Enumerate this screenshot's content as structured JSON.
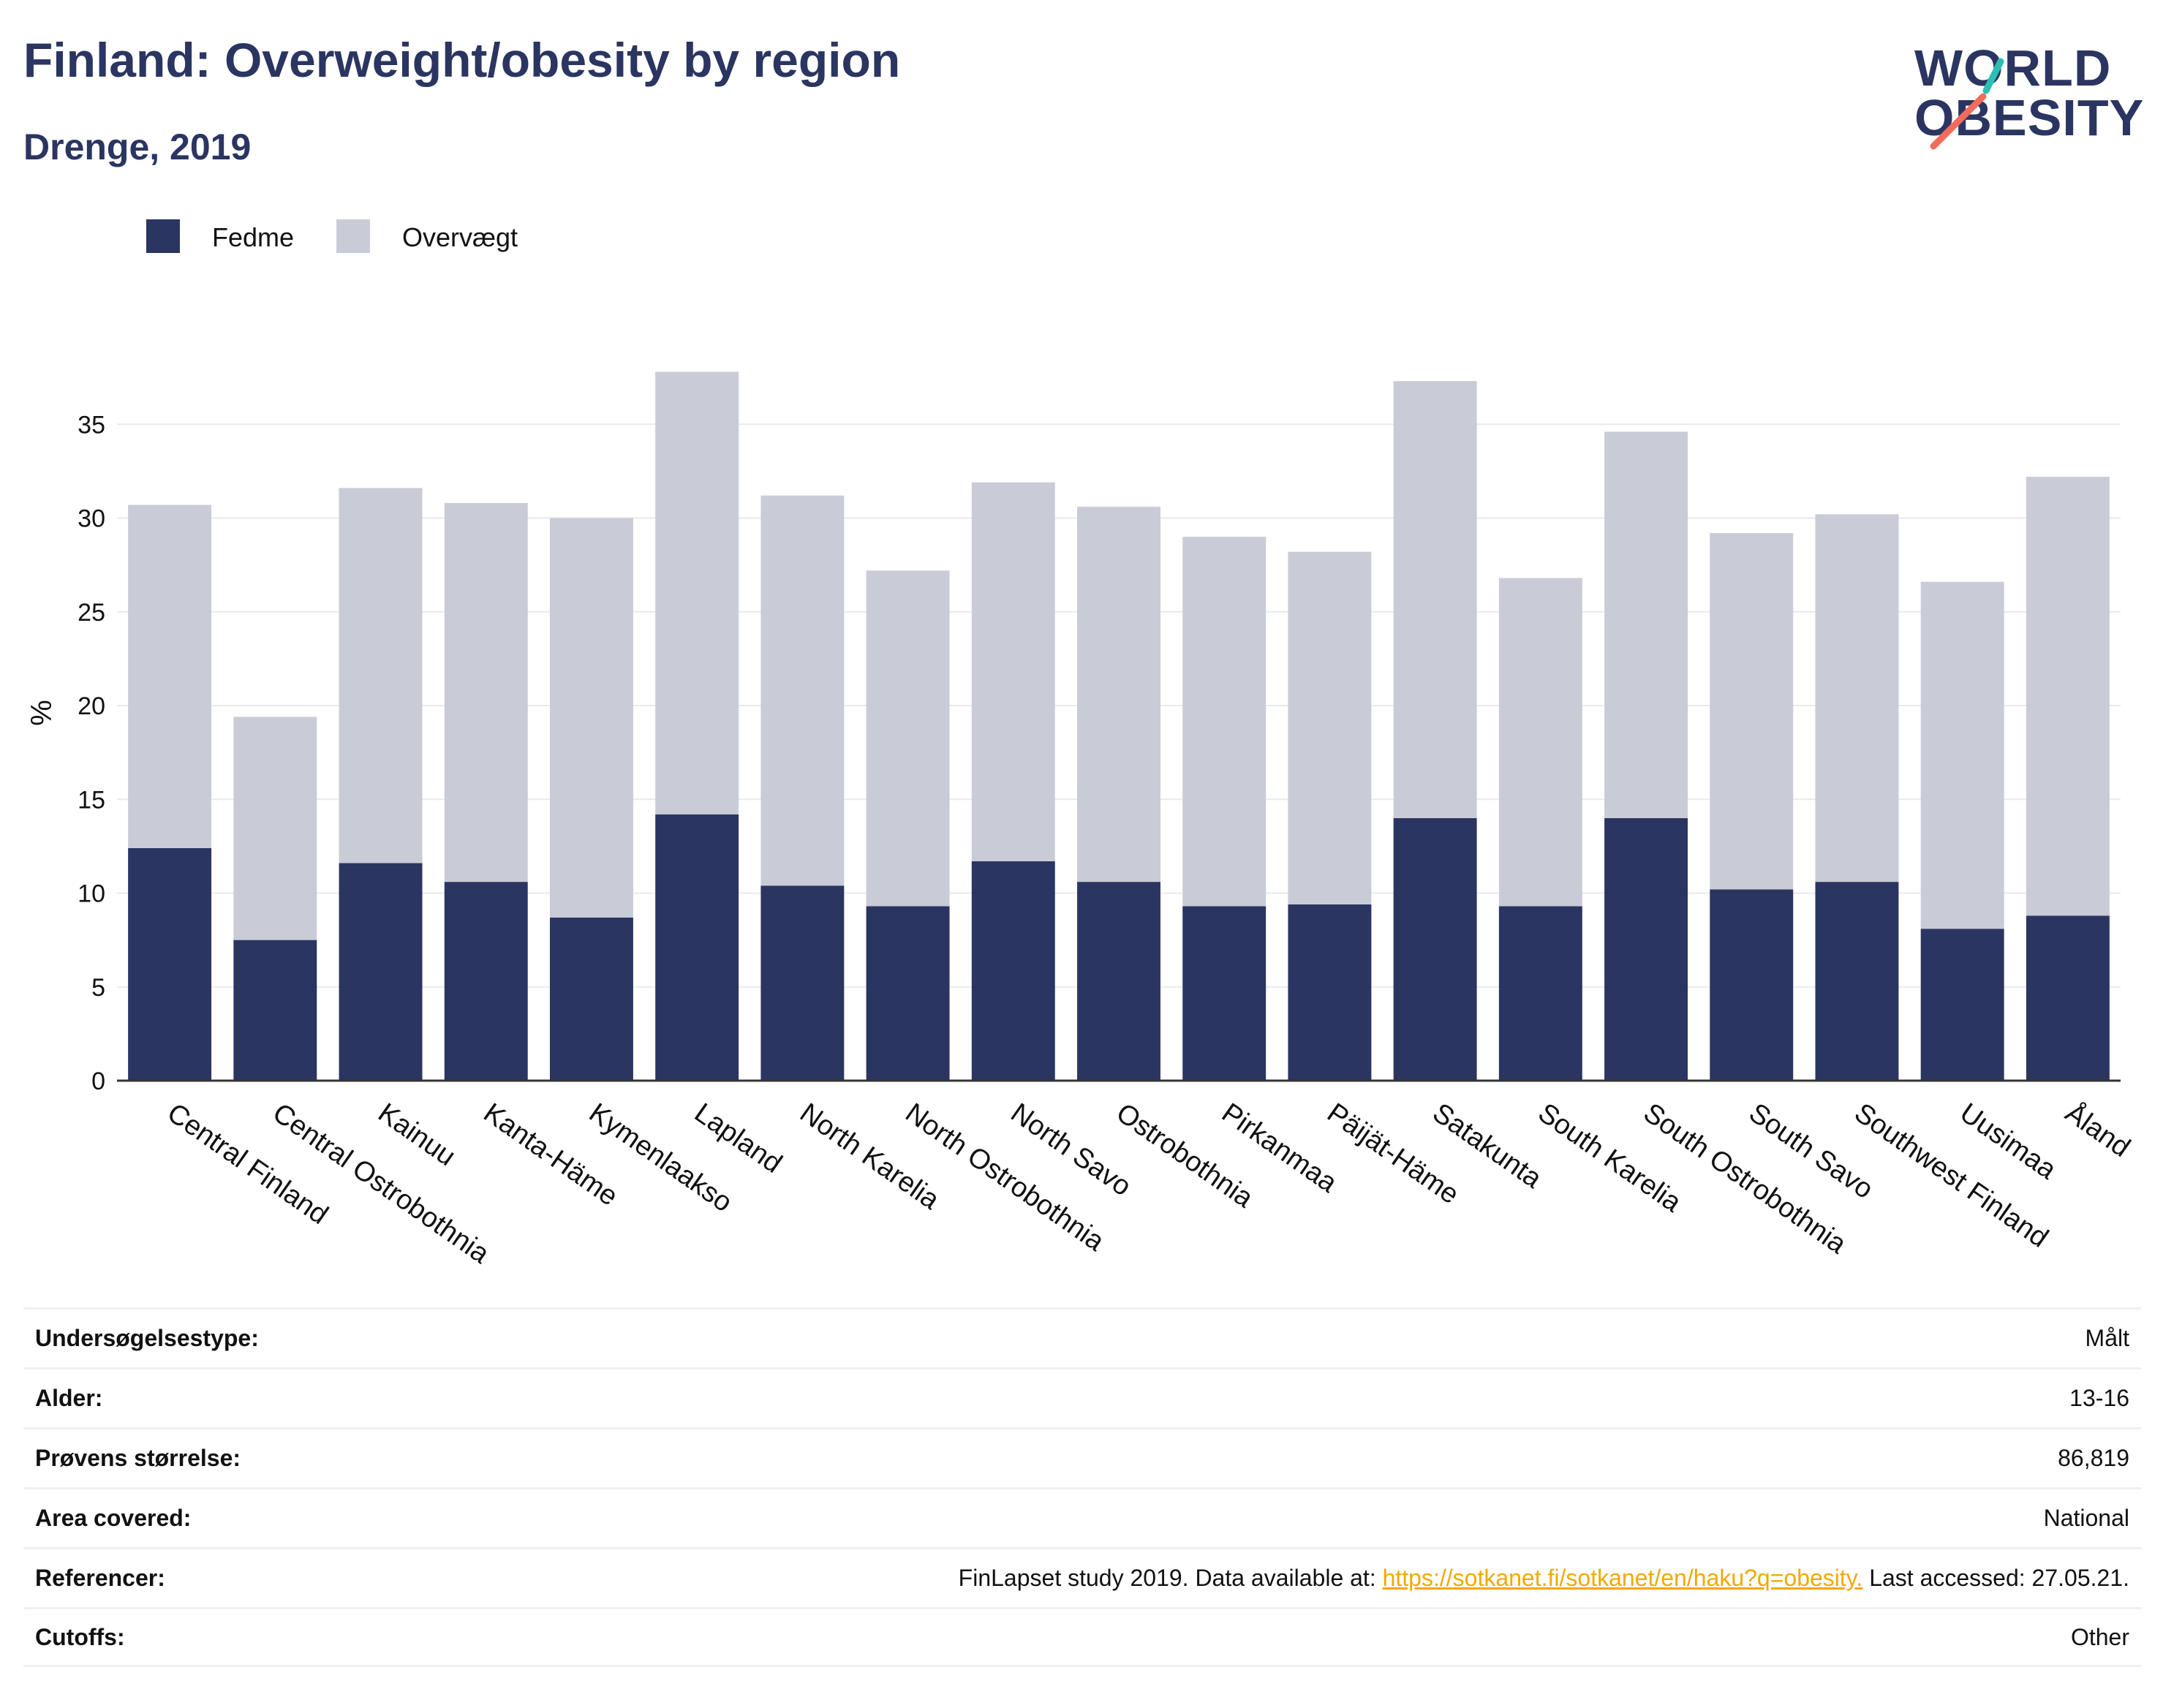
{
  "header": {
    "title": "Finland: Overweight/obesity by region",
    "subtitle": "Drenge, 2019"
  },
  "logo": {
    "line1": "WORLD",
    "line2": "OBESITY"
  },
  "colors": {
    "fedme": "#2b3561",
    "overvaegt": "#c9cbd6",
    "accent_teal": "#2bbfb3",
    "accent_coral": "#f26b5b"
  },
  "chart_data": {
    "type": "bar",
    "stacked": true,
    "categories": [
      "Central Finland",
      "Central Ostrobothnia",
      "Kainuu",
      "Kanta-Häme",
      "Kymenlaakso",
      "Lapland",
      "North Karelia",
      "North Ostrobothnia",
      "North Savo",
      "Ostrobothnia",
      "Pirkanmaa",
      "Päijät-Häme",
      "Satakunta",
      "South Karelia",
      "South Ostrobothnia",
      "South Savo",
      "Southwest Finland",
      "Uusimaa",
      "Åland"
    ],
    "series": [
      {
        "name": "Fedme",
        "color": "#2b3561",
        "values": [
          12.4,
          7.5,
          11.6,
          10.6,
          8.7,
          14.2,
          10.4,
          9.3,
          11.7,
          10.6,
          9.3,
          9.4,
          14.0,
          9.3,
          14.0,
          10.2,
          10.6,
          8.1,
          8.8
        ]
      },
      {
        "name": "Overvægt",
        "color": "#c9cbd6",
        "values": [
          18.3,
          11.9,
          20.0,
          20.2,
          21.3,
          23.6,
          20.8,
          17.9,
          20.2,
          20.0,
          19.7,
          18.8,
          23.3,
          17.5,
          20.6,
          19.0,
          19.6,
          18.5,
          23.4
        ]
      }
    ],
    "ylabel": "%",
    "ylim": [
      0,
      40
    ],
    "yticks": [
      "0",
      "5",
      "10",
      "15",
      "20",
      "25",
      "30",
      "35"
    ],
    "legend_position": "top-left",
    "grid": true
  },
  "meta": [
    {
      "label": "Undersøgelsestype:",
      "value": "Målt"
    },
    {
      "label": "Alder:",
      "value": "13-16"
    },
    {
      "label": "Prøvens størrelse:",
      "value": "86,819"
    },
    {
      "label": "Area covered:",
      "value": "National"
    },
    {
      "label": "Referencer:",
      "value_pre": "FinLapset study 2019. Data available at: ",
      "link": "https://sotkanet.fi/sotkanet/en/haku?q=obesity.",
      "value_post": " Last accessed: 27.05.21."
    },
    {
      "label": "Cutoffs:",
      "value": "Other"
    }
  ]
}
